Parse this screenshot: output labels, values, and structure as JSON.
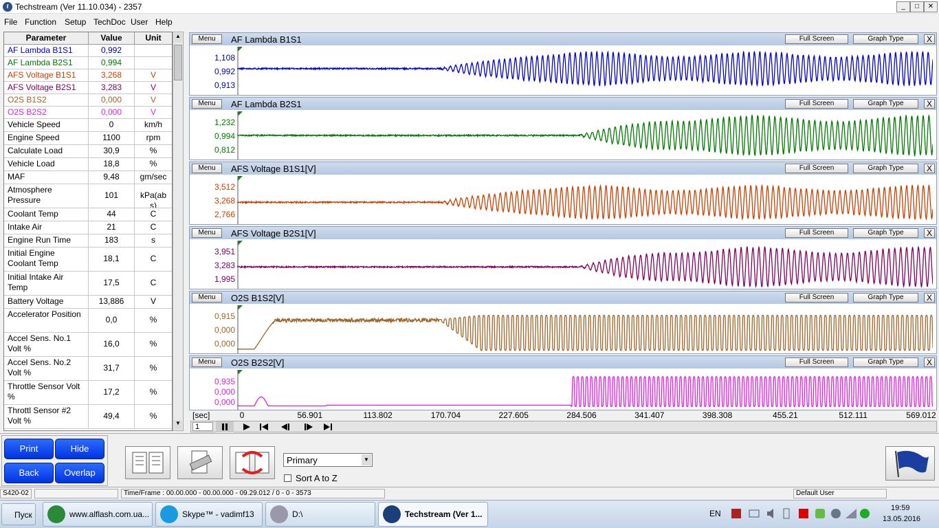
{
  "window": {
    "title": "Techstream (Ver 11.10.034) - 2357",
    "menu": [
      "File",
      "Function",
      "Setup",
      "TechDoc",
      "User",
      "Help"
    ]
  },
  "table": {
    "header": [
      "Parameter",
      "Value",
      "Unit"
    ],
    "rows": [
      [
        "AF Lambda B1S1",
        "0,992",
        ""
      ],
      [
        "AF Lambda B2S1",
        "0,994",
        ""
      ],
      [
        "AFS Voltage B1S1",
        "3,268",
        "V"
      ],
      [
        "AFS Voltage B2S1",
        "3,283",
        "V"
      ],
      [
        "O2S B1S2",
        "0,000",
        "V"
      ],
      [
        "O2S B2S2",
        "0,000",
        "V"
      ],
      [
        "Vehicle Speed",
        "0",
        "km/h"
      ],
      [
        "Engine Speed",
        "1100",
        "rpm"
      ],
      [
        "Calculate Load",
        "30,9",
        "%"
      ],
      [
        "Vehicle Load",
        "18,8",
        "%"
      ],
      [
        "MAF",
        "9,48",
        "gm/sec"
      ],
      [
        "Atmosphere Pressure",
        "101",
        "kPa(abs)"
      ],
      [
        "Coolant Temp",
        "44",
        "C"
      ],
      [
        "Intake Air",
        "21",
        "C"
      ],
      [
        "Engine Run Time",
        "183",
        "s"
      ],
      [
        "Initial Engine Coolant Temp",
        "18,1",
        "C"
      ],
      [
        "Initial Intake Air Temp",
        "17,5",
        "C"
      ],
      [
        "Battery Voltage",
        "13,886",
        "V"
      ],
      [
        "Accelerator Position",
        "0,0",
        "%"
      ],
      [
        "Accel Sens. No.1 Volt %",
        "16,0",
        "%"
      ],
      [
        "Accel Sens. No.2 Volt %",
        "31,7",
        "%"
      ],
      [
        "Throttle Sensor Volt %",
        "17,2",
        "%"
      ],
      [
        "Throttl Sensor #2 Volt %",
        "49,4",
        "%"
      ]
    ]
  },
  "graphs": [
    {
      "title": "AF Lambda B1S1",
      "labels": [
        "1,108",
        "0,992",
        "0,913"
      ],
      "color": "#0000c8"
    },
    {
      "title": "AF Lambda B2S1",
      "labels": [
        "1,232",
        "0,994",
        "0,812"
      ],
      "color": "#007a00"
    },
    {
      "title": "AFS Voltage B1S1[V]",
      "labels": [
        "3,512",
        "3,268",
        "2,766"
      ],
      "color": "#c84000"
    },
    {
      "title": "AFS Voltage B2S1[V]",
      "labels": [
        "3,951",
        "3,283",
        "1,995"
      ],
      "color": "#800060"
    },
    {
      "title": "O2S B1S2[V]",
      "labels": [
        "0,915",
        "0,000",
        "0,000"
      ],
      "color": "#a06428"
    },
    {
      "title": "O2S B2S2[V]",
      "labels": [
        "0,935",
        "0,000",
        "0,000"
      ],
      "color": "#e020e0"
    }
  ],
  "graph_buttons": {
    "menu": "Menu",
    "full_screen": "Full Screen",
    "graph_type": "Graph Type",
    "close": "X"
  },
  "time_axis": {
    "unit": "[sec]",
    "ticks": [
      "0",
      "56.901",
      "113.802",
      "170.704",
      "227.605",
      "284.506",
      "341.407",
      "398.308",
      "455.21",
      "512.111",
      "569.012"
    ]
  },
  "playback": {
    "frame": "1"
  },
  "controls": {
    "buttons": [
      "Print",
      "Hide",
      "Back",
      "Overlap"
    ],
    "select": "Primary",
    "checkbox": "Sort A to Z"
  },
  "status": [
    "S420-02",
    "Time/Frame : 00.00.000 - 00.00.000 - 09.29.012 / 0 - 0 - 3573",
    "Default User"
  ],
  "taskbar": {
    "start": "Пуск",
    "tasks": [
      "www.alflash.com.ua...",
      "Skype™ - vadimf13",
      "D:\\",
      "Techstream (Ver 1..."
    ],
    "lang": "EN",
    "time": "19:59",
    "date": "13.05.2016"
  }
}
